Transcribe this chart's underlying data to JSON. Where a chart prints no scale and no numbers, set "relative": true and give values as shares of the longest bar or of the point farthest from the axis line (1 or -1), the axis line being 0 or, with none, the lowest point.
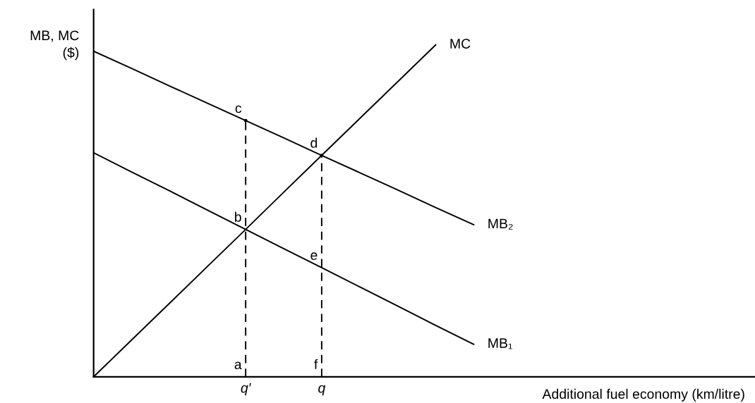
{
  "chart_data": {
    "type": "line",
    "relative": true,
    "ylabel": "MB, MC\n($)",
    "xlabel": "Additional fuel economy (km/litre)",
    "categories": [
      null,
      null,
      null,
      null,
      "q′",
      null,
      "q",
      null,
      null,
      null,
      null,
      null,
      null,
      null,
      null,
      null,
      null,
      null
    ],
    "tick_labels": "x",
    "legend": false,
    "marker": "none",
    "series": [
      {
        "name": "MC",
        "color": "#000000",
        "values": [
          0,
          0.111,
          0.222,
          0.333,
          0.444,
          0.556,
          0.667,
          0.778,
          0.889,
          1,
          null,
          null,
          null,
          null,
          null,
          null,
          null,
          null
        ]
      },
      {
        "name": "MB₂",
        "color": "#000000",
        "values": [
          0.981,
          0.929,
          0.876,
          0.824,
          0.772,
          0.72,
          0.667,
          0.615,
          0.563,
          0.51,
          0.458,
          null,
          null,
          null,
          null,
          null,
          null,
          null
        ]
      },
      {
        "name": "MB₁",
        "color": "#000000",
        "values": [
          0.675,
          0.617,
          0.56,
          0.502,
          0.444,
          0.386,
          0.329,
          0.271,
          0.213,
          0.155,
          0.098,
          null,
          null,
          null,
          null,
          null,
          null,
          null
        ]
      },
      {
        "type": "lollipop",
        "color": "#000000",
        "line_style": "dashed",
        "values": [
          null,
          null,
          null,
          null,
          0.772,
          null,
          0.667,
          null,
          null,
          null,
          null,
          null,
          null,
          null,
          null,
          null,
          null,
          null
        ]
      }
    ],
    "annotations": [
      "a",
      {
        "text": "b",
        "x": "q′",
        "y": 0.444
      },
      {
        "text": "c",
        "x": "q′",
        "y": 0.772
      },
      {
        "text": "d",
        "x": "q",
        "y": 0.667
      },
      {
        "text": "e",
        "x": "q",
        "y": 0.329
      },
      "f"
    ]
  }
}
